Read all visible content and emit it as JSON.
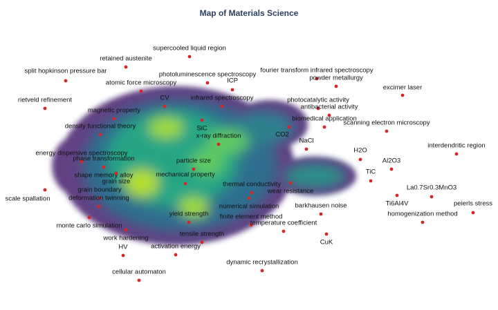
{
  "title": "Map of Materials Science",
  "labels": [
    "supercooled liquid region",
    "retained austenite",
    "split hopkinson pressure bar",
    "photoluminescence spectroscopy",
    "fourier transform infrared spectroscopy",
    "powder metallurgy",
    "ICP",
    "atomic force microscopy",
    "excimer laser",
    "rietveld refinement",
    "CV",
    "infrared spectroscopy",
    "photocatalytic activity",
    "antibacterial activity",
    "magnetic property",
    "biomedical application",
    "scanning electron microscopy",
    "density functional theory",
    "SiC",
    "CO2",
    "x-ray diffraction",
    "NaCl",
    "interdendritic region",
    "H2O",
    "energy dispersive spectroscopy",
    "phase transformation",
    "Al2O3",
    "particle size",
    "shape memory alloy",
    "grain size",
    "mechanical property",
    "TiC",
    "thermal conductivity",
    "La0.7Sr0.3MnO3",
    "grain boundary",
    "wear resistance",
    "scale spallation",
    "deformation twinning",
    "Ti6Al4V",
    "peierls stress",
    "barkhausen noise",
    "numerical simulation",
    "yield strength",
    "finite element method",
    "homogenization method",
    "temperature coefficient",
    "monte carlo simulation",
    "tensile strength",
    "work hardening",
    "CuK",
    "HV",
    "activation energy",
    "dynamic recrystallization",
    "cellular automaton"
  ]
}
